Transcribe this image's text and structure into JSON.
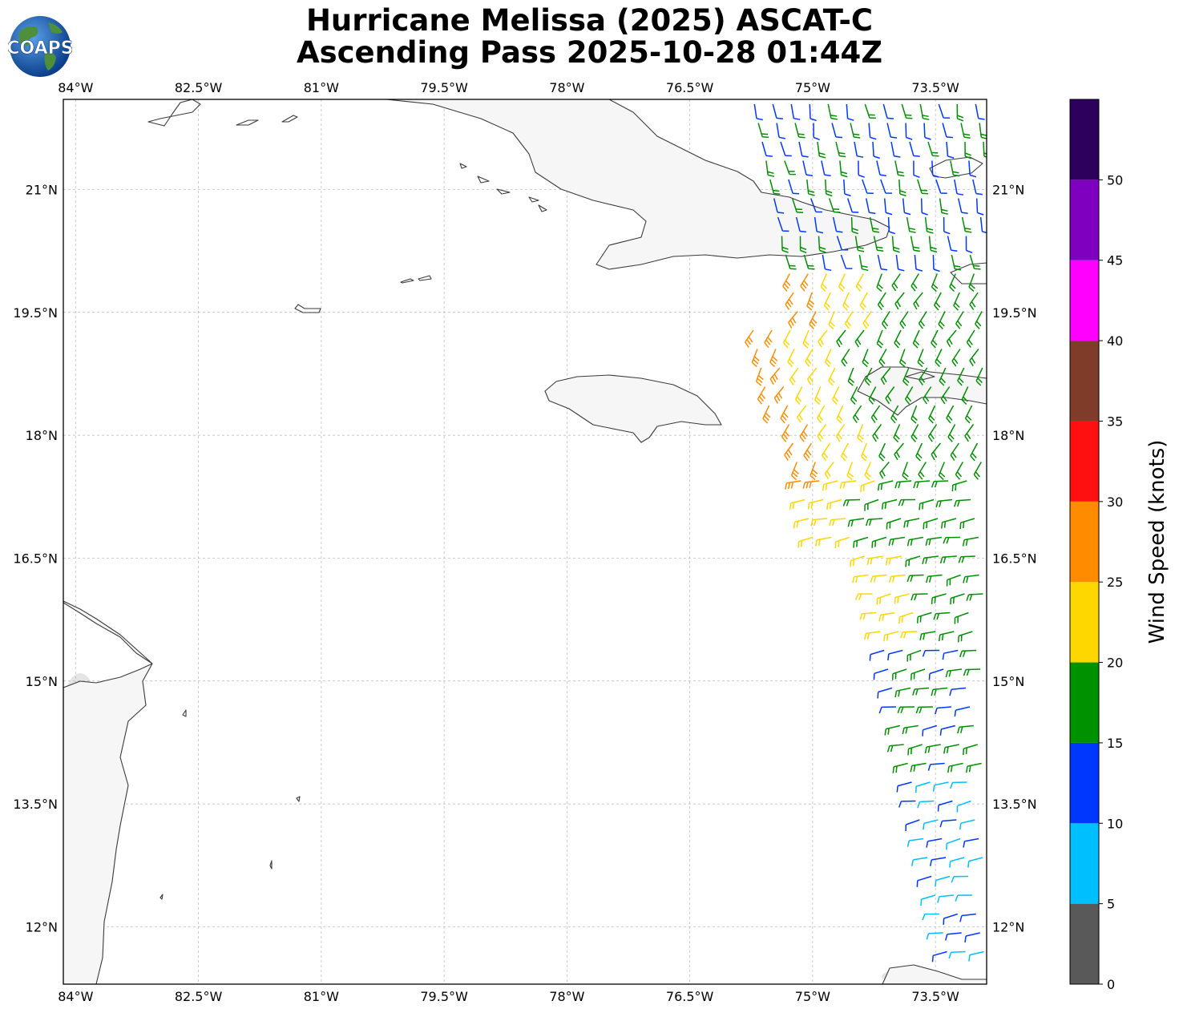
{
  "title": {
    "line1": "Hurricane Melissa (2025) ASCAT-C",
    "line2": "Ascending Pass 2025-10-28 01:44Z"
  },
  "logo": {
    "text": "COAPS",
    "icon": "globe-logo"
  },
  "map": {
    "lon_range": [
      -84.15,
      -72.875
    ],
    "lat_range": [
      11.3,
      22.1
    ],
    "lon_ticks": [
      "84°W",
      "82.5°W",
      "81°W",
      "79.5°W",
      "78°W",
      "76.5°W",
      "75°W",
      "73.5°W"
    ],
    "lat_ticks": [
      "21°N",
      "19.5°N",
      "18°N",
      "16.5°N",
      "15°N",
      "13.5°N",
      "12°N"
    ],
    "grid": "dashed",
    "land_outline_color": "#3a3a3a"
  },
  "colorbar": {
    "label": "Wind Speed (knots)",
    "ticks": [
      "0",
      "5",
      "10",
      "15",
      "20",
      "25",
      "30",
      "35",
      "40",
      "45",
      "50"
    ],
    "bins": [
      {
        "min": 0,
        "max": 5,
        "color": "#595959"
      },
      {
        "min": 5,
        "max": 10,
        "color": "#00bfff"
      },
      {
        "min": 10,
        "max": 15,
        "color": "#0037ff"
      },
      {
        "min": 15,
        "max": 20,
        "color": "#009100"
      },
      {
        "min": 20,
        "max": 25,
        "color": "#ffd700"
      },
      {
        "min": 25,
        "max": 30,
        "color": "#ff8c00"
      },
      {
        "min": 30,
        "max": 35,
        "color": "#ff1010"
      },
      {
        "min": 35,
        "max": 40,
        "color": "#7f3c28"
      },
      {
        "min": 40,
        "max": 45,
        "color": "#ff00ff"
      },
      {
        "min": 45,
        "max": 50,
        "color": "#8000c0"
      },
      {
        "min": 50,
        "max": 55,
        "color": "#2e005e"
      }
    ]
  }
}
